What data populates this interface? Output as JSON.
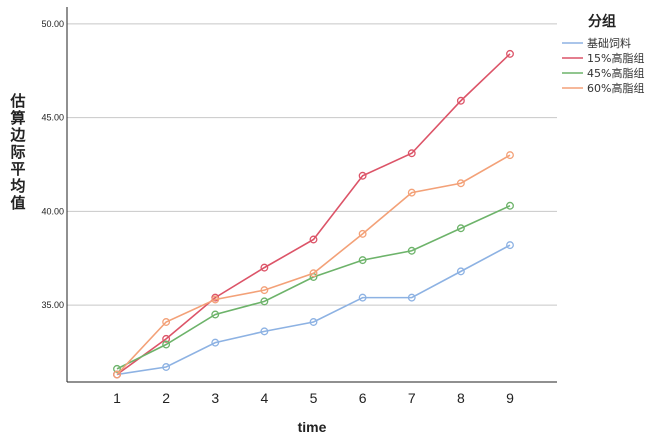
{
  "chart_data": {
    "type": "line",
    "xlabel": "time",
    "ylabel": "估算边际平均值",
    "x": [
      1,
      2,
      3,
      4,
      5,
      6,
      7,
      8,
      9
    ],
    "ylim": [
      30.9,
      50.9
    ],
    "yticks": [
      35.0,
      40.0,
      45.0,
      50.0
    ],
    "ytick_labels": [
      "35.00",
      "40.00",
      "45.00",
      "50.00"
    ],
    "grid": "horizontal",
    "legend_title": "分组",
    "legend_position": "top-right",
    "series": [
      {
        "name": "基础饲料",
        "color": "#8db2e3",
        "values": [
          31.3,
          31.7,
          33.0,
          33.6,
          34.1,
          35.4,
          35.4,
          36.8,
          38.2
        ]
      },
      {
        "name": "15%高脂组",
        "color": "#dc5468",
        "values": [
          31.3,
          33.2,
          35.4,
          37.0,
          38.5,
          41.9,
          43.1,
          45.9,
          48.4
        ]
      },
      {
        "name": "45%高脂组",
        "color": "#6db36a",
        "values": [
          31.6,
          32.9,
          34.5,
          35.2,
          36.5,
          37.4,
          37.9,
          39.1,
          40.3
        ]
      },
      {
        "name": "60%高脂组",
        "color": "#f3a178",
        "values": [
          31.3,
          34.1,
          35.3,
          35.8,
          36.7,
          38.8,
          41.0,
          41.5,
          43.0
        ]
      }
    ]
  }
}
